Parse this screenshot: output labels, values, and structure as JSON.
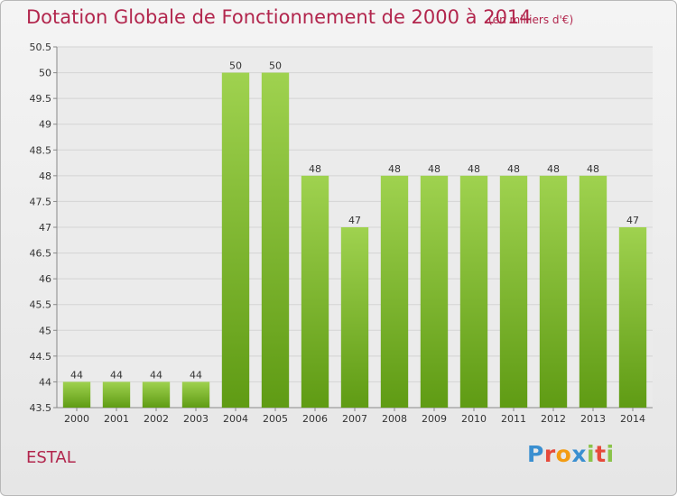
{
  "header": {
    "title": "Dotation Globale de Fonctionnement de 2000 à 2014",
    "subtitle": "(en milliers d'€)"
  },
  "footer": {
    "commune": "ESTAL",
    "logo_text": "Proxiti"
  },
  "colors": {
    "title": "#b2264d",
    "bar_light": "#9fd24f",
    "bar_dark": "#5f9b14",
    "logo_letters": [
      "#3a8fd0",
      "#e64a3b",
      "#f39c12",
      "#3a8fd0",
      "#8bc34a",
      "#e64a3b",
      "#8bc34a"
    ]
  },
  "chart_data": {
    "type": "bar",
    "categories": [
      "2000",
      "2001",
      "2002",
      "2003",
      "2004",
      "2005",
      "2006",
      "2007",
      "2008",
      "2009",
      "2010",
      "2011",
      "2012",
      "2013",
      "2014"
    ],
    "values": [
      44,
      44,
      44,
      44,
      50,
      50,
      48,
      47,
      48,
      48,
      48,
      48,
      48,
      48,
      47
    ],
    "data_labels": [
      "44",
      "44",
      "44",
      "44",
      "50",
      "50",
      "48",
      "47",
      "48",
      "48",
      "48",
      "48",
      "48",
      "48",
      "47"
    ],
    "ylim": [
      43.5,
      50.5
    ],
    "y_ticks": [
      43.5,
      44,
      44.5,
      45,
      45.5,
      46,
      46.5,
      47,
      47.5,
      48,
      48.5,
      49,
      49.5,
      50,
      50.5
    ],
    "y_tick_labels": [
      "43.5",
      "44",
      "44.5",
      "45",
      "45.5",
      "46",
      "46.5",
      "47",
      "47.5",
      "48",
      "48.5",
      "49",
      "49.5",
      "50",
      "50.5"
    ],
    "grid": true,
    "legend": "none"
  }
}
